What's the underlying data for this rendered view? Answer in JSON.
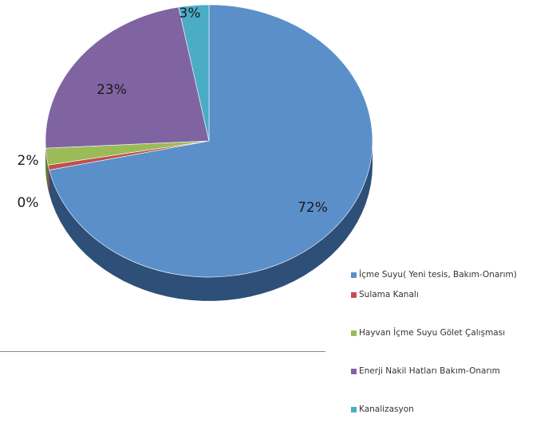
{
  "chart_data": {
    "type": "pie",
    "title": "",
    "series": [
      {
        "name": "",
        "values": [
          72,
          0,
          2,
          23,
          3
        ]
      }
    ],
    "categories": [
      "İçme Suyu( Yeni tesis, Bakım-Onarım)",
      "Sulama Kanalı",
      "Hayvan İçme Suyu Gölet Çalışması",
      "Enerji Nakil Hatları Bakım-Onarım",
      "Kanalizasyon"
    ],
    "data_labels": [
      "72%",
      "0%",
      "2%",
      "23%",
      "3%"
    ],
    "colors": [
      "#5b8fca",
      "#c0504d",
      "#9bbb59",
      "#8064a2",
      "#4bacc6"
    ],
    "side_colors": [
      "#2e4f78",
      "#7a2e2c",
      "#5f7a35",
      "#4d3b66",
      "#2c6f80"
    ],
    "legend_position": "bottom-right",
    "three_d": true
  }
}
